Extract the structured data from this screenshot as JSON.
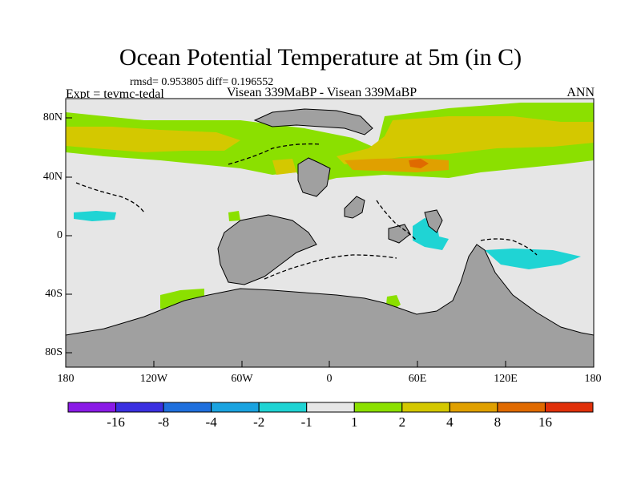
{
  "title": "Ocean Potential Temperature at 5m (in C)",
  "stats_text": "rmsd= 0.953805 diff= 0.196552",
  "expt_label": "Expt = tevmc-tedal",
  "experiment_compare": "Visean 339MaBP - Visean 339MaBP",
  "season": "ANN",
  "y_ticks": [
    "80N",
    "40N",
    "0",
    "40S",
    "80S"
  ],
  "x_ticks": [
    "180",
    "120W",
    "60W",
    "0",
    "60E",
    "120E",
    "180"
  ],
  "colorbar": {
    "labels": [
      "-16",
      "-8",
      "-4",
      "-2",
      "-1",
      "1",
      "2",
      "4",
      "8",
      "16"
    ],
    "colors": [
      "#8a1ae6",
      "#3a2fe0",
      "#1f6fdd",
      "#1aa3e0",
      "#1fd4d4",
      "#e6e6e6",
      "#8be000",
      "#d4c800",
      "#e0a000",
      "#e06a00",
      "#e0300a"
    ]
  },
  "colors": {
    "land": "#a0a0a0",
    "neutral": "#e6e6e6",
    "green": "#8be000",
    "yellow": "#d4c800",
    "orange": "#e0a000",
    "dark_orange": "#e06a00",
    "cyan": "#1fd4d4"
  }
}
